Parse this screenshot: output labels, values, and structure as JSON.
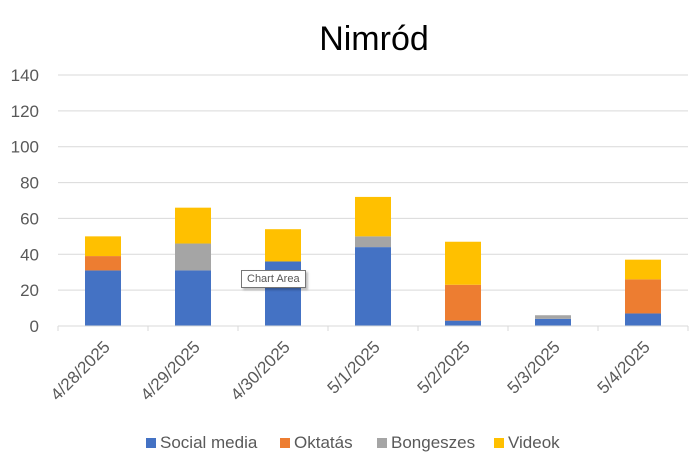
{
  "chart_data": {
    "type": "bar",
    "stacked": true,
    "title": "Nimród",
    "categories": [
      "4/28/2025",
      "4/29/2025",
      "4/30/2025",
      "5/1/2025",
      "5/2/2025",
      "5/3/2025",
      "5/4/2025"
    ],
    "series": [
      {
        "name": "Social media",
        "color": "#4472C4",
        "values": [
          31,
          31,
          36,
          44,
          3,
          4,
          7
        ]
      },
      {
        "name": "Oktatás",
        "color": "#ED7D31",
        "values": [
          8,
          0,
          0,
          0,
          20,
          0,
          19
        ]
      },
      {
        "name": "Bongeszes",
        "color": "#A5A5A5",
        "values": [
          0,
          15,
          0,
          6,
          0,
          2,
          0
        ]
      },
      {
        "name": "Videok",
        "color": "#FFC000",
        "values": [
          11,
          20,
          18,
          22,
          24,
          0,
          11
        ]
      }
    ],
    "ylim": [
      0,
      140
    ],
    "yticks": [
      0,
      20,
      40,
      60,
      80,
      100,
      120,
      140
    ],
    "xlabel": "",
    "ylabel": "",
    "grid": true,
    "legend": "bottom"
  },
  "tooltip": {
    "text": "Chart Area"
  }
}
